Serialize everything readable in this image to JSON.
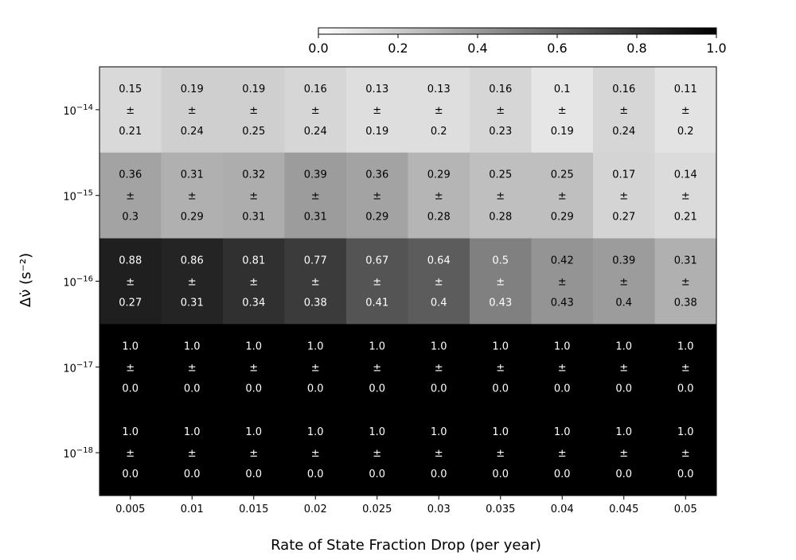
{
  "chart_data": {
    "type": "heatmap",
    "title": "",
    "xlabel": "Rate of State Fraction Drop (per year)",
    "ylabel": "Δν̇ (s⁻²)",
    "x_ticks": [
      "0.005",
      "0.01",
      "0.015",
      "0.02",
      "0.025",
      "0.03",
      "0.035",
      "0.04",
      "0.045",
      "0.05"
    ],
    "y_ticks": [
      {
        "base": "10",
        "exp": "−14"
      },
      {
        "base": "10",
        "exp": "−15"
      },
      {
        "base": "10",
        "exp": "−16"
      },
      {
        "base": "10",
        "exp": "−17"
      },
      {
        "base": "10",
        "exp": "−18"
      }
    ],
    "colorbar": {
      "range": [
        0.0,
        1.0
      ],
      "ticks": [
        "0.0",
        "0.2",
        "0.4",
        "0.6",
        "0.8",
        "1.0"
      ],
      "colormap": "gray_r",
      "placement": "top"
    },
    "pm_symbol": "±",
    "rows": [
      {
        "values": [
          "0.15",
          "0.19",
          "0.19",
          "0.16",
          "0.13",
          "0.13",
          "0.16",
          "0.1",
          "0.16",
          "0.11"
        ],
        "errors": [
          "0.21",
          "0.24",
          "0.25",
          "0.24",
          "0.19",
          "0.2",
          "0.23",
          "0.19",
          "0.24",
          "0.2"
        ]
      },
      {
        "values": [
          "0.36",
          "0.31",
          "0.32",
          "0.39",
          "0.36",
          "0.29",
          "0.25",
          "0.25",
          "0.17",
          "0.14"
        ],
        "errors": [
          "0.3",
          "0.29",
          "0.31",
          "0.31",
          "0.29",
          "0.28",
          "0.28",
          "0.29",
          "0.27",
          "0.21"
        ]
      },
      {
        "values": [
          "0.88",
          "0.86",
          "0.81",
          "0.77",
          "0.67",
          "0.64",
          "0.5",
          "0.42",
          "0.39",
          "0.31"
        ],
        "errors": [
          "0.27",
          "0.31",
          "0.34",
          "0.38",
          "0.41",
          "0.4",
          "0.43",
          "0.43",
          "0.4",
          "0.38"
        ]
      },
      {
        "values": [
          "1.0",
          "1.0",
          "1.0",
          "1.0",
          "1.0",
          "1.0",
          "1.0",
          "1.0",
          "1.0",
          "1.0"
        ],
        "errors": [
          "0.0",
          "0.0",
          "0.0",
          "0.0",
          "0.0",
          "0.0",
          "0.0",
          "0.0",
          "0.0",
          "0.0"
        ]
      },
      {
        "values": [
          "1.0",
          "1.0",
          "1.0",
          "1.0",
          "1.0",
          "1.0",
          "1.0",
          "1.0",
          "1.0",
          "1.0"
        ],
        "errors": [
          "0.0",
          "0.0",
          "0.0",
          "0.0",
          "0.0",
          "0.0",
          "0.0",
          "0.0",
          "0.0",
          "0.0"
        ]
      }
    ]
  }
}
